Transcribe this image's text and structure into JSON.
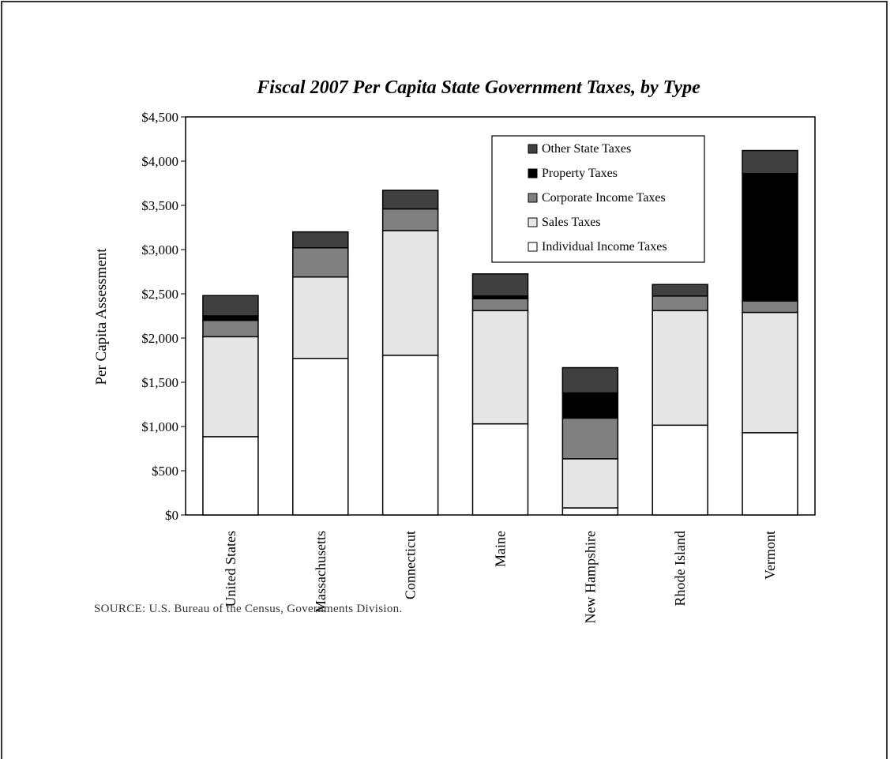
{
  "chart_data": {
    "type": "bar",
    "stacked": true,
    "title": "Fiscal 2007 Per Capita State Government Taxes, by Type",
    "xlabel": "",
    "ylabel": "Per Capita Assessment",
    "categories": [
      "United States",
      "Massachusetts",
      "Connecticut",
      "Maine",
      "New Hampshire",
      "Rhode Island",
      "Vermont"
    ],
    "ylim": [
      0,
      4500
    ],
    "yticks": [
      0,
      500,
      1000,
      1500,
      2000,
      2500,
      3000,
      3500,
      4000,
      4500
    ],
    "ytick_labels": [
      "$0",
      "$500",
      "$1,000",
      "$1,500",
      "$2,000",
      "$2,500",
      "$3,000",
      "$3,500",
      "$4,000",
      "$4,500"
    ],
    "grid": false,
    "legend_position": "top-right",
    "legend_order": [
      "Other State Taxes",
      "Property Taxes",
      "Corporate Income Taxes",
      "Sales Taxes",
      "Individual Income Taxes"
    ],
    "series": [
      {
        "name": "Individual Income Taxes",
        "color": "#ffffff",
        "values": [
          885,
          1770,
          1805,
          1030,
          80,
          1015,
          930
        ]
      },
      {
        "name": "Sales Taxes",
        "color": "#e6e6e6",
        "values": [
          1130,
          920,
          1410,
          1280,
          555,
          1295,
          1360
        ]
      },
      {
        "name": "Corporate Income Taxes",
        "color": "#808080",
        "values": [
          185,
          330,
          245,
          135,
          460,
          165,
          130
        ]
      },
      {
        "name": "Property Taxes",
        "color": "#000000",
        "values": [
          50,
          0,
          0,
          30,
          285,
          0,
          1440
        ]
      },
      {
        "name": "Other State Taxes",
        "color": "#404040",
        "values": [
          230,
          180,
          210,
          250,
          285,
          130,
          260
        ]
      }
    ]
  },
  "source_note": "SOURCE:  U.S. Bureau of the Census, Governments Division."
}
